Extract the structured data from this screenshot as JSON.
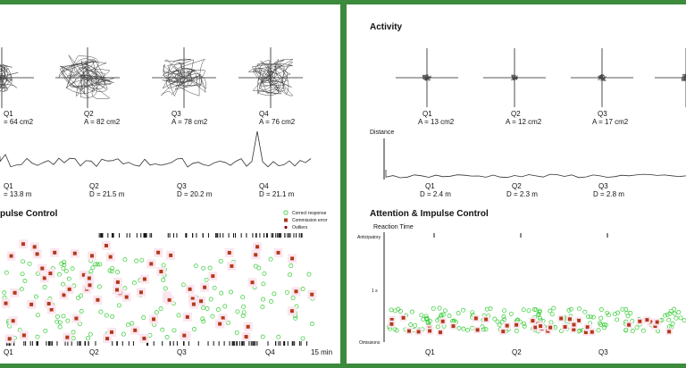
{
  "left": {
    "quadrants": [
      {
        "label": "Q1",
        "area": "= 64 cm2",
        "distance": "= 13.8 m",
        "x_label": "Q1"
      },
      {
        "label": "Q2",
        "area": "A = 82 cm2",
        "distance": "D = 21.5 m",
        "x_label": "Q2"
      },
      {
        "label": "Q3",
        "area": "A = 78 cm2",
        "distance": "D = 20.2 m",
        "x_label": "Q3"
      },
      {
        "label": "Q4",
        "area": "A = 76 cm2",
        "distance": "D = 21.1 m",
        "x_label": "Q4"
      }
    ],
    "section_title": "pulse Control",
    "end_label": "15 min",
    "legend": [
      {
        "label": "Correct response",
        "color": "#33cc33",
        "shape": "circle"
      },
      {
        "label": "Commission error",
        "color": "#b23a1a",
        "shape": "square"
      },
      {
        "label": "Outliers",
        "color": "#8b0000",
        "shape": "dot"
      }
    ]
  },
  "right": {
    "activity_title": "Activity",
    "quadrants": [
      {
        "label": "Q1",
        "area": "A = 13 cm2",
        "distance": "D = 2.4 m",
        "x_label": "Q1"
      },
      {
        "label": "Q2",
        "area": "A = 12 cm2",
        "distance": "D = 2.3 m",
        "x_label": "Q2"
      },
      {
        "label": "Q3",
        "area": "A = 17 cm2",
        "distance": "D = 2.8 m",
        "x_label": "Q3"
      }
    ],
    "distance_axis": "Distance",
    "attention_title": "Attention & Impulse Control",
    "reaction_axis": "Reaction Time",
    "y_ticks": [
      "Anticipatory",
      "1 s",
      "Omissions"
    ]
  },
  "colors": {
    "frame": "#3c8a3c",
    "correct": "#33cc33",
    "commission": "#b23a1a",
    "outlier": "#8b0000",
    "trace": "#444444"
  }
}
